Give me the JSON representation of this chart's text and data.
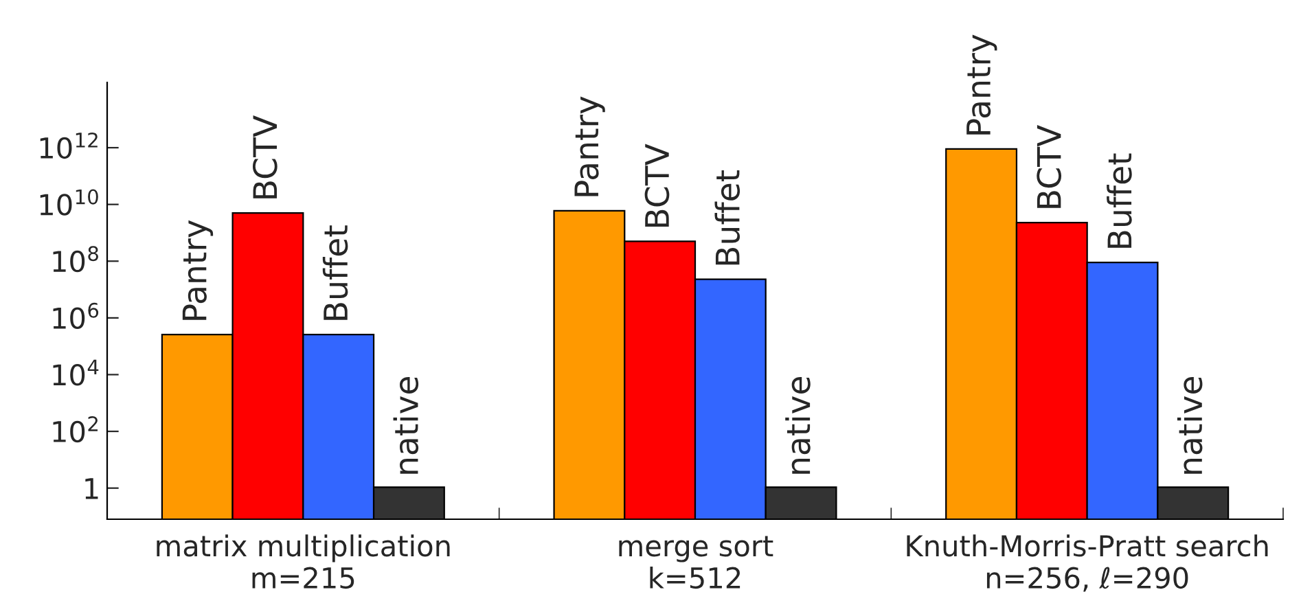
{
  "chart_data": {
    "type": "bar",
    "log": "y",
    "categories": [
      "matrix multiplication\nm=215",
      "merge sort\nk=512",
      "Knuth-Morris-Pratt search\nn=256, ℓ=290"
    ],
    "series": [
      {
        "name": "Pantry",
        "color": "#ff9900",
        "values": [
          260000,
          6000000000,
          900000000000
        ]
      },
      {
        "name": "BCTV",
        "color": "#ff0000",
        "values": [
          5000000000,
          500000000,
          2300000000
        ]
      },
      {
        "name": "Buffet",
        "color": "#3366ff",
        "values": [
          260000,
          23000000,
          90000000
        ]
      },
      {
        "name": "native",
        "color": "#333333",
        "values": [
          1,
          1,
          1
        ]
      }
    ],
    "ylim": [
      0.08,
      200000000000000
    ],
    "yticks": [
      1,
      {
        "value": 100,
        "label": "10$^{2}$"
      },
      {
        "value": 10000,
        "label": "10$^{4}$"
      },
      {
        "value": 1000000,
        "label": "10$^{6}$"
      },
      {
        "value": 100000000,
        "label": "10$^{8}$"
      },
      {
        "value": 10000000000,
        "label": "10$^{10}$"
      },
      {
        "value": 1000000000000,
        "label": "10$^{12}$"
      }
    ],
    "grid": false,
    "legend": false
  }
}
